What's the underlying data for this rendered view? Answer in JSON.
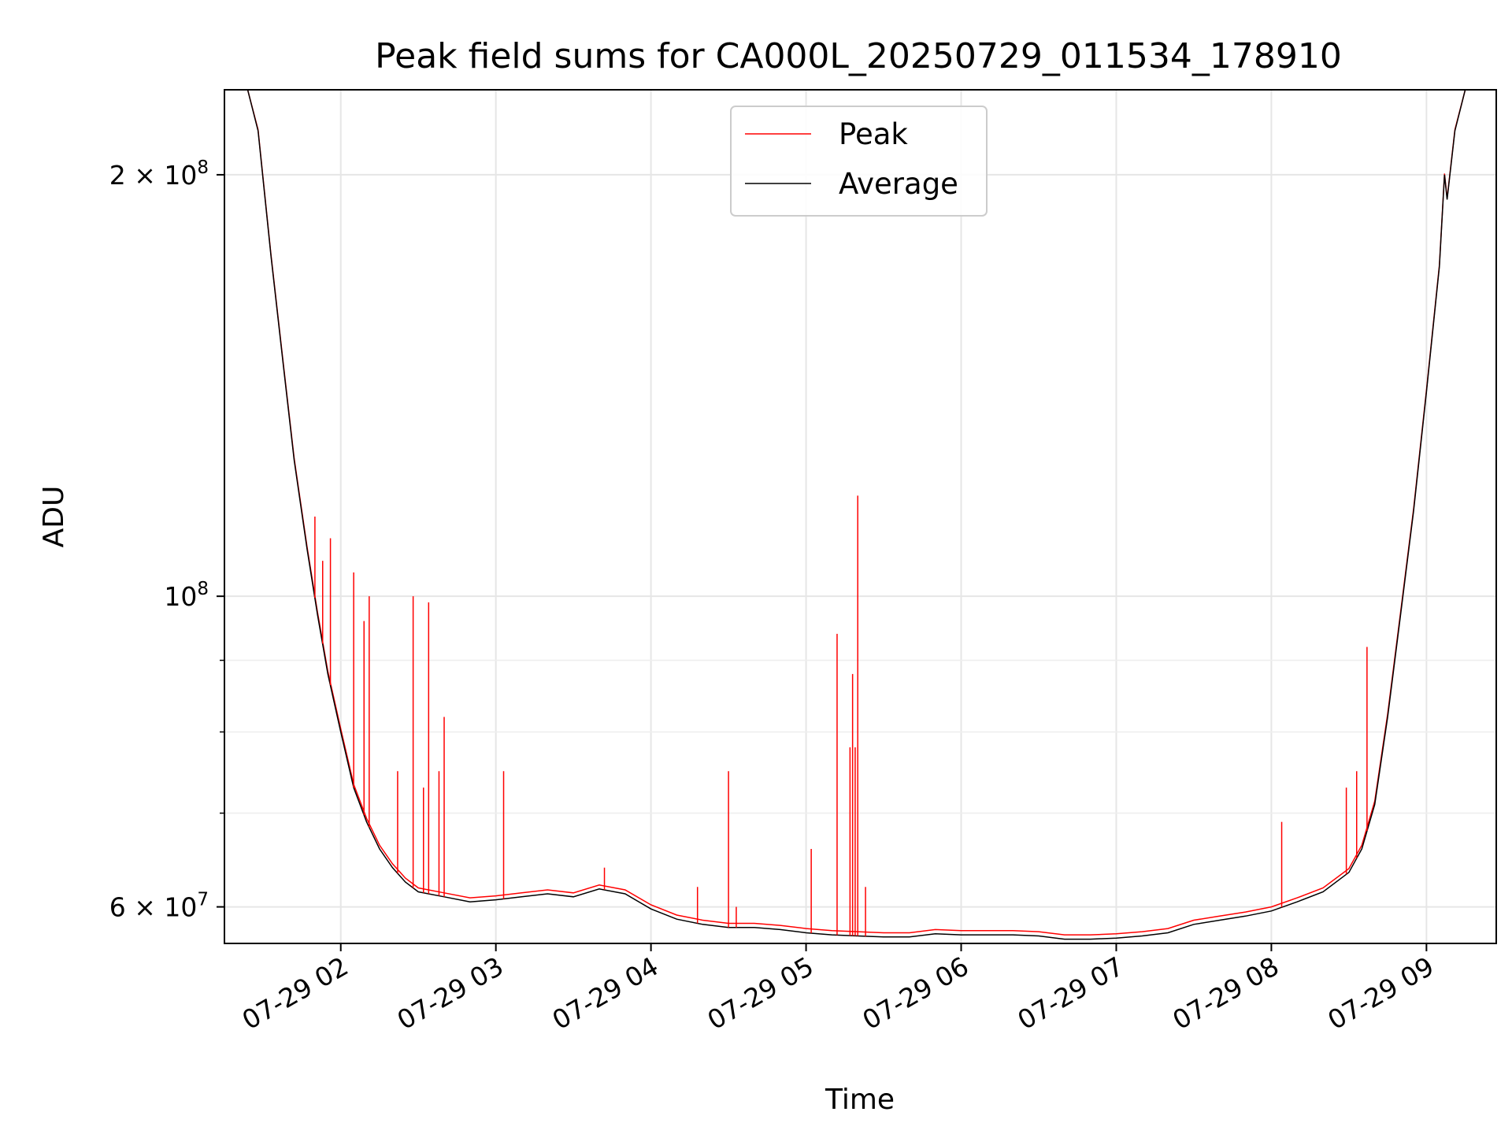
{
  "chart_data": {
    "type": "line",
    "title": "Peak field sums for CA000L_20250729_011534_178910",
    "xlabel": "Time",
    "ylabel": "ADU",
    "y_scale": "log",
    "grid": true,
    "legend_position": "top-center",
    "xlim": [
      "2025-07-29 01:15",
      "2025-07-29 09:27"
    ],
    "ylim": [
      56500000,
      230000000
    ],
    "x_ticks": [
      {
        "value": "2025-07-29 02:00",
        "label": "07-29 02"
      },
      {
        "value": "2025-07-29 03:00",
        "label": "07-29 03"
      },
      {
        "value": "2025-07-29 04:00",
        "label": "07-29 04"
      },
      {
        "value": "2025-07-29 05:00",
        "label": "07-29 05"
      },
      {
        "value": "2025-07-29 06:00",
        "label": "07-29 06"
      },
      {
        "value": "2025-07-29 07:00",
        "label": "07-29 07"
      },
      {
        "value": "2025-07-29 08:00",
        "label": "07-29 08"
      },
      {
        "value": "2025-07-29 09:00",
        "label": "07-29 09"
      }
    ],
    "y_ticks": [
      {
        "value": 60000000,
        "base": "6 × 10",
        "exp": "7"
      },
      {
        "value": 100000000,
        "base": "10",
        "exp": "8"
      },
      {
        "value": 200000000,
        "base": "2 × 10",
        "exp": "8"
      }
    ],
    "y_minor_ticks": [
      70000000,
      80000000,
      90000000
    ],
    "series": [
      {
        "name": "Average",
        "color": "#000000",
        "points": [
          [
            "2025-07-29 01:15",
            230000000
          ],
          [
            "2025-07-29 01:24",
            230000000
          ],
          [
            "2025-07-29 01:28",
            215000000
          ],
          [
            "2025-07-29 01:33",
            175000000
          ],
          [
            "2025-07-29 01:38",
            145000000
          ],
          [
            "2025-07-29 01:42",
            125000000
          ],
          [
            "2025-07-29 01:47",
            108000000
          ],
          [
            "2025-07-29 01:51",
            97000000
          ],
          [
            "2025-07-29 01:55",
            88000000
          ],
          [
            "2025-07-29 02:00",
            80000000
          ],
          [
            "2025-07-29 02:05",
            73000000
          ],
          [
            "2025-07-29 02:10",
            69000000
          ],
          [
            "2025-07-29 02:15",
            66000000
          ],
          [
            "2025-07-29 02:20",
            64000000
          ],
          [
            "2025-07-29 02:25",
            62500000
          ],
          [
            "2025-07-29 02:30",
            61500000
          ],
          [
            "2025-07-29 02:40",
            61000000
          ],
          [
            "2025-07-29 02:50",
            60500000
          ],
          [
            "2025-07-29 03:00",
            60700000
          ],
          [
            "2025-07-29 03:10",
            61000000
          ],
          [
            "2025-07-29 03:20",
            61300000
          ],
          [
            "2025-07-29 03:30",
            61000000
          ],
          [
            "2025-07-29 03:40",
            61800000
          ],
          [
            "2025-07-29 03:50",
            61300000
          ],
          [
            "2025-07-29 04:00",
            59800000
          ],
          [
            "2025-07-29 04:10",
            58800000
          ],
          [
            "2025-07-29 04:20",
            58300000
          ],
          [
            "2025-07-29 04:30",
            58000000
          ],
          [
            "2025-07-29 04:40",
            58000000
          ],
          [
            "2025-07-29 04:50",
            57800000
          ],
          [
            "2025-07-29 05:00",
            57500000
          ],
          [
            "2025-07-29 05:10",
            57300000
          ],
          [
            "2025-07-29 05:20",
            57200000
          ],
          [
            "2025-07-29 05:30",
            57100000
          ],
          [
            "2025-07-29 05:40",
            57100000
          ],
          [
            "2025-07-29 05:50",
            57400000
          ],
          [
            "2025-07-29 06:00",
            57300000
          ],
          [
            "2025-07-29 06:10",
            57300000
          ],
          [
            "2025-07-29 06:20",
            57300000
          ],
          [
            "2025-07-29 06:30",
            57200000
          ],
          [
            "2025-07-29 06:40",
            56900000
          ],
          [
            "2025-07-29 06:50",
            56900000
          ],
          [
            "2025-07-29 07:00",
            57000000
          ],
          [
            "2025-07-29 07:10",
            57200000
          ],
          [
            "2025-07-29 07:20",
            57500000
          ],
          [
            "2025-07-29 07:30",
            58300000
          ],
          [
            "2025-07-29 07:40",
            58700000
          ],
          [
            "2025-07-29 07:50",
            59100000
          ],
          [
            "2025-07-29 08:00",
            59600000
          ],
          [
            "2025-07-29 08:10",
            60500000
          ],
          [
            "2025-07-29 08:20",
            61500000
          ],
          [
            "2025-07-29 08:30",
            63500000
          ],
          [
            "2025-07-29 08:35",
            66000000
          ],
          [
            "2025-07-29 08:40",
            71000000
          ],
          [
            "2025-07-29 08:45",
            82000000
          ],
          [
            "2025-07-29 08:50",
            97000000
          ],
          [
            "2025-07-29 08:55",
            115000000
          ],
          [
            "2025-07-29 09:00",
            140000000
          ],
          [
            "2025-07-29 09:05",
            172000000
          ],
          [
            "2025-07-29 09:07",
            200000000
          ],
          [
            "2025-07-29 09:08",
            192000000
          ],
          [
            "2025-07-29 09:11",
            215000000
          ],
          [
            "2025-07-29 09:15",
            230000000
          ],
          [
            "2025-07-29 09:27",
            230000000
          ]
        ]
      },
      {
        "name": "Peak",
        "color": "#ff0000",
        "baseline_offset": 400000,
        "spikes": [
          [
            "2025-07-29 01:50",
            114000000
          ],
          [
            "2025-07-29 01:53",
            106000000
          ],
          [
            "2025-07-29 01:56",
            110000000
          ],
          [
            "2025-07-29 02:05",
            104000000
          ],
          [
            "2025-07-29 02:09",
            96000000
          ],
          [
            "2025-07-29 02:11",
            100000000
          ],
          [
            "2025-07-29 02:22",
            75000000
          ],
          [
            "2025-07-29 02:28",
            100000000
          ],
          [
            "2025-07-29 02:32",
            73000000
          ],
          [
            "2025-07-29 02:34",
            99000000
          ],
          [
            "2025-07-29 02:38",
            75000000
          ],
          [
            "2025-07-29 02:40",
            82000000
          ],
          [
            "2025-07-29 03:03",
            75000000
          ],
          [
            "2025-07-29 03:42",
            64000000
          ],
          [
            "2025-07-29 04:18",
            62000000
          ],
          [
            "2025-07-29 04:30",
            75000000
          ],
          [
            "2025-07-29 04:33",
            60000000
          ],
          [
            "2025-07-29 05:02",
            66000000
          ],
          [
            "2025-07-29 05:12",
            94000000
          ],
          [
            "2025-07-29 05:17",
            78000000
          ],
          [
            "2025-07-29 05:18",
            88000000
          ],
          [
            "2025-07-29 05:19",
            78000000
          ],
          [
            "2025-07-29 05:20",
            118000000
          ],
          [
            "2025-07-29 05:23",
            62000000
          ],
          [
            "2025-07-29 08:04",
            69000000
          ],
          [
            "2025-07-29 08:29",
            73000000
          ],
          [
            "2025-07-29 08:33",
            75000000
          ],
          [
            "2025-07-29 08:37",
            92000000
          ]
        ]
      }
    ]
  }
}
